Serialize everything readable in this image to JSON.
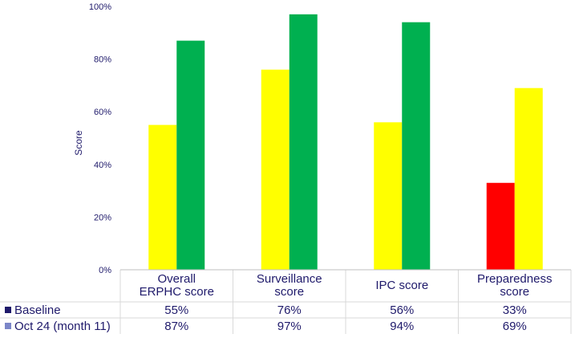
{
  "chart_data": {
    "type": "bar",
    "ylabel": "Score",
    "ylim": [
      0,
      100
    ],
    "yticks": [
      "0%",
      "20%",
      "40%",
      "60%",
      "80%",
      "100%"
    ],
    "categories": [
      [
        "Overall",
        "ERPHC score"
      ],
      [
        "Surveillance",
        "score"
      ],
      [
        "IPC score"
      ],
      [
        "Preparedness",
        "score"
      ]
    ],
    "series": [
      {
        "name": "Baseline",
        "legend_color": "#1f1a6b",
        "values": [
          55,
          76,
          56,
          33
        ],
        "labels": [
          "55%",
          "76%",
          "56%",
          "33%"
        ],
        "bar_colors": [
          "#ffff00",
          "#ffff00",
          "#ffff00",
          "#ff0000"
        ]
      },
      {
        "name": "Oct 24 (month 11)",
        "legend_color": "#7b86c8",
        "values": [
          87,
          97,
          94,
          69
        ],
        "labels": [
          "87%",
          "97%",
          "94%",
          "69%"
        ],
        "bar_colors": [
          "#00b050",
          "#00b050",
          "#00b050",
          "#ffff00"
        ]
      }
    ],
    "grid": false,
    "legend": "data-table-left"
  }
}
